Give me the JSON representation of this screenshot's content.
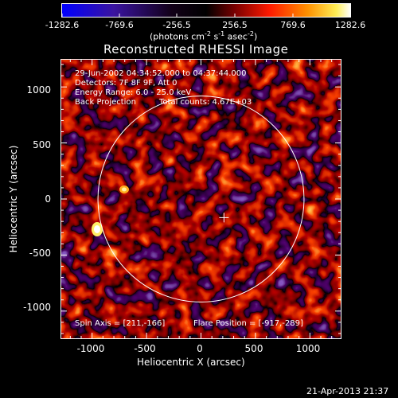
{
  "colorbar": {
    "ticks": [
      "-1282.6",
      "-769.6",
      "-256.5",
      "256.5",
      "769.6",
      "1282.6"
    ],
    "units_prefix": "(photons cm",
    "units_exp1": "-2",
    "units_mid1": " s",
    "units_exp2": "-1",
    "units_mid2": " asec",
    "units_exp3": "-2",
    "units_suffix": ")",
    "colors": [
      "#0000ff",
      "#2a1090",
      "#000000",
      "#7a0000",
      "#ff1a00",
      "#ff8800",
      "#ffee44",
      "#ffffff"
    ]
  },
  "plot": {
    "title": "Reconstructed RHESSI Image",
    "time_range": "29-Jun-2002 04:34:52.000 to 04:37:44.000",
    "detectors": "Detectors: 7F 8F 9F, Att 0",
    "energy": "Energy Range: 6.0 - 25.0 keV",
    "method": "Back Projection",
    "counts": "Total counts: 4.67E+03",
    "spin_axis": "Spin Axis = [211,-166]",
    "flare_position": "Flare Position = [-917,-289]",
    "xlabel": "Heliocentric X (arcsec)",
    "ylabel": "Heliocentric Y (arcsec)",
    "xticks": [
      "-1000",
      "-500",
      "0",
      "500",
      "1000"
    ],
    "yticks": [
      "1000",
      "500",
      "0",
      "-500",
      "-1000"
    ],
    "xrange": [
      -1290,
      1290
    ],
    "yrange": [
      -1250,
      1250
    ],
    "solar_radius": 946,
    "spin_axis_xy": [
      211,
      -166
    ],
    "flare_xy": [
      -917,
      -289
    ]
  },
  "footer": {
    "date": "21-Apr-2013 21:37"
  }
}
